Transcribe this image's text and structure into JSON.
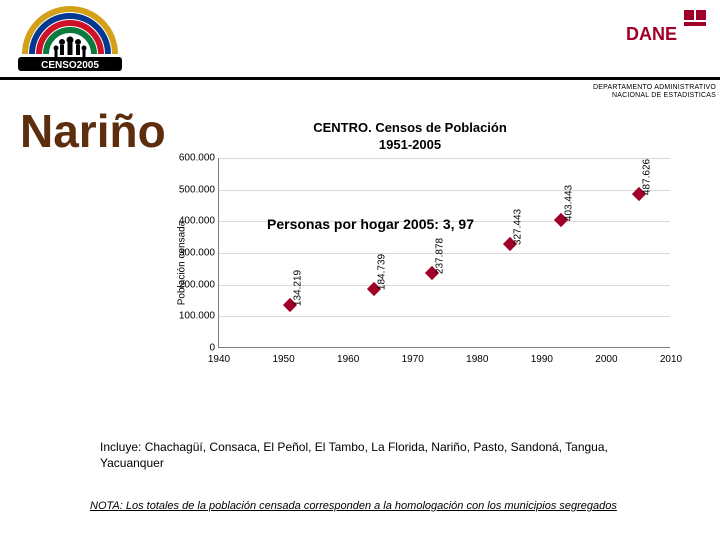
{
  "header": {
    "dept_line1": "DEPARTAMENTO ADMINISTRATIVO",
    "dept_line2": "NACIONAL DE ESTADISTICAS",
    "dane_text": "DANE",
    "censo_text": "CENSO2005"
  },
  "region_title": "Nariño",
  "chart": {
    "type": "scatter",
    "title_line1": "CENTRO. Censos de Población",
    "title_line2": "1951-2005",
    "ylabel": "Población censada",
    "xlim": [
      1940,
      2010
    ],
    "ylim": [
      0,
      600000
    ],
    "xtick_step": 10,
    "ytick_step": 100000,
    "yticks": [
      "0",
      "100.000",
      "200.000",
      "300.000",
      "400.000",
      "500.000",
      "600.000"
    ],
    "xticks": [
      "1940",
      "1950",
      "1960",
      "1970",
      "1980",
      "1990",
      "2000",
      "2010"
    ],
    "marker_color": "#a00028",
    "marker_size": 10,
    "grid_color": "#d9d9d9",
    "axis_color": "#808080",
    "background_color": "#ffffff",
    "title_fontsize": 13,
    "tick_fontsize": 10,
    "label_fontsize": 10,
    "annotation": "Personas por hogar 2005: 3, 97",
    "annotation_fontsize": 14,
    "data": [
      {
        "x": 1951,
        "y": 134219,
        "label": "134.219"
      },
      {
        "x": 1964,
        "y": 184739,
        "label": "184.739"
      },
      {
        "x": 1973,
        "y": 237878,
        "label": "237.878"
      },
      {
        "x": 1985,
        "y": 327443,
        "label": "327.443"
      },
      {
        "x": 1993,
        "y": 403443,
        "label": "403.443"
      },
      {
        "x": 2005,
        "y": 487626,
        "label": "487.626"
      }
    ]
  },
  "footer": {
    "include": "Incluye: Chachagüí, Consaca, El Peñol, El Tambo, La Florida, Nariño, Pasto, Sandoná, Tangua, Yacuanquer",
    "note": "NOTA: Los totales de la población censada corresponden a la homologación con los municipios segregados"
  },
  "logos": {
    "left_alt": "Censo 2005",
    "right_alt": "DANE"
  }
}
